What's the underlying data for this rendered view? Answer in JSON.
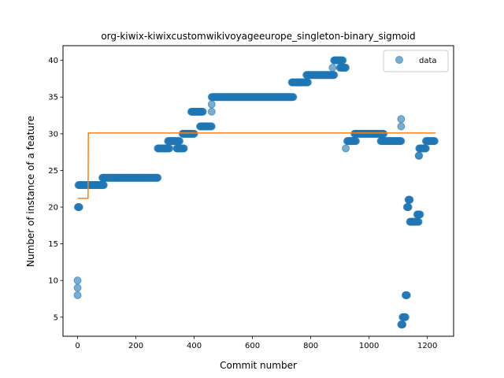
{
  "chart_data": {
    "type": "scatter",
    "title": "org-kiwix-kiwixcustomwikivoyageeurope_singleton-binary_sigmoid",
    "xlabel": "Commit number",
    "ylabel": "Number of instance of a feature",
    "xlim": [
      -50,
      1290
    ],
    "ylim": [
      2.4,
      42.0
    ],
    "xticks": [
      0,
      200,
      400,
      600,
      800,
      1000,
      1200
    ],
    "yticks": [
      5,
      10,
      15,
      20,
      25,
      30,
      35,
      40
    ],
    "grid": false,
    "legend_position": "upper right",
    "legend": [
      "data"
    ],
    "series": [
      {
        "name": "data",
        "kind": "scatter",
        "color": "#1f77b4",
        "alpha": 0.6,
        "segments": [
          {
            "x_start": 0,
            "x_end": 0,
            "y": 10
          },
          {
            "x_start": 0,
            "x_end": 0,
            "y": 9
          },
          {
            "x_start": 0,
            "x_end": 0,
            "y": 8
          },
          {
            "x_start": 1,
            "x_end": 6,
            "y": 20
          },
          {
            "x_start": 3,
            "x_end": 90,
            "y": 23
          },
          {
            "x_start": 85,
            "x_end": 275,
            "y": 24
          },
          {
            "x_start": 275,
            "x_end": 315,
            "y": 28
          },
          {
            "x_start": 310,
            "x_end": 350,
            "y": 29
          },
          {
            "x_start": 340,
            "x_end": 365,
            "y": 28
          },
          {
            "x_start": 360,
            "x_end": 400,
            "y": 30
          },
          {
            "x_start": 390,
            "x_end": 430,
            "y": 33
          },
          {
            "x_start": 420,
            "x_end": 460,
            "y": 31
          },
          {
            "x_start": 460,
            "x_end": 460,
            "y": 33
          },
          {
            "x_start": 460,
            "x_end": 460,
            "y": 34
          },
          {
            "x_start": 460,
            "x_end": 740,
            "y": 35
          },
          {
            "x_start": 735,
            "x_end": 790,
            "y": 37
          },
          {
            "x_start": 785,
            "x_end": 880,
            "y": 38
          },
          {
            "x_start": 875,
            "x_end": 875,
            "y": 39
          },
          {
            "x_start": 880,
            "x_end": 910,
            "y": 40
          },
          {
            "x_start": 900,
            "x_end": 920,
            "y": 39
          },
          {
            "x_start": 920,
            "x_end": 920,
            "y": 28
          },
          {
            "x_start": 925,
            "x_end": 955,
            "y": 29
          },
          {
            "x_start": 950,
            "x_end": 1050,
            "y": 30
          },
          {
            "x_start": 1040,
            "x_end": 1110,
            "y": 29
          },
          {
            "x_start": 1110,
            "x_end": 1110,
            "y": 31
          },
          {
            "x_start": 1110,
            "x_end": 1110,
            "y": 32
          },
          {
            "x_start": 1110,
            "x_end": 1115,
            "y": 4
          },
          {
            "x_start": 1115,
            "x_end": 1125,
            "y": 5
          },
          {
            "x_start": 1125,
            "x_end": 1130,
            "y": 8
          },
          {
            "x_start": 1130,
            "x_end": 1135,
            "y": 20
          },
          {
            "x_start": 1135,
            "x_end": 1140,
            "y": 21
          },
          {
            "x_start": 1140,
            "x_end": 1170,
            "y": 18
          },
          {
            "x_start": 1165,
            "x_end": 1175,
            "y": 19
          },
          {
            "x_start": 1170,
            "x_end": 1172,
            "y": 27
          },
          {
            "x_start": 1172,
            "x_end": 1195,
            "y": 28
          },
          {
            "x_start": 1195,
            "x_end": 1225,
            "y": 29
          }
        ]
      },
      {
        "name": "",
        "kind": "line",
        "color": "#ff7f0e",
        "x": [
          0,
          36,
          37,
          1228
        ],
        "y": [
          21.2,
          21.2,
          30.1,
          30.1
        ]
      }
    ]
  }
}
